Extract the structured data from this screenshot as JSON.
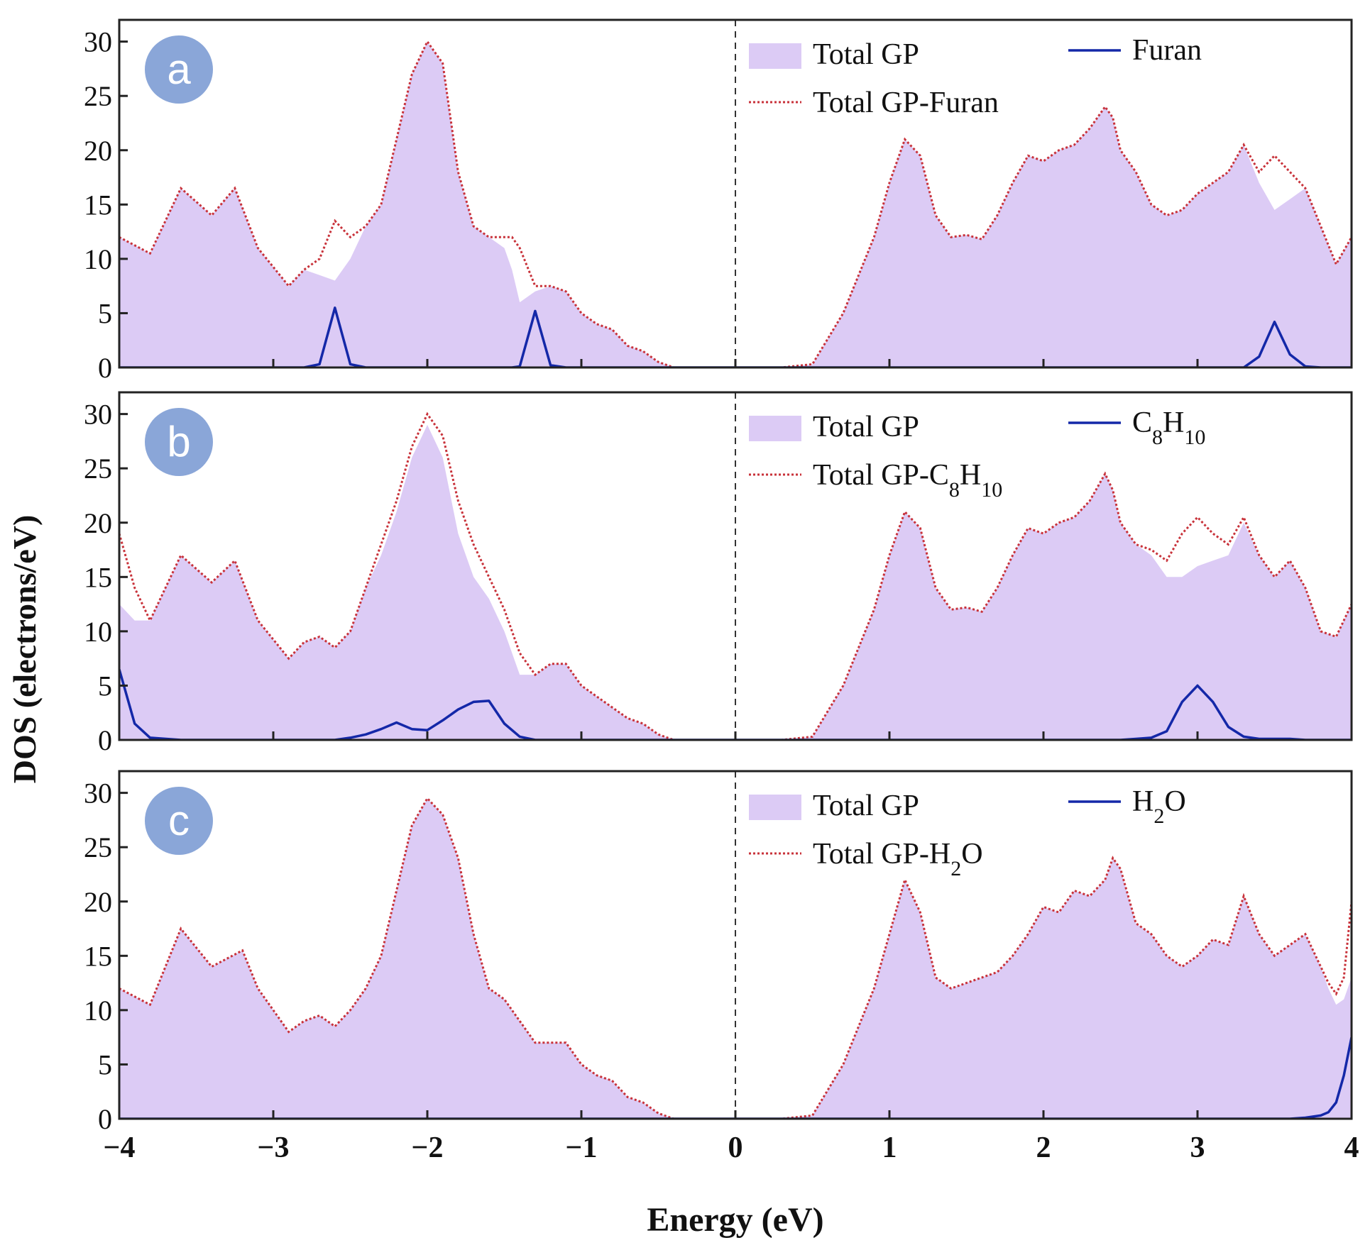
{
  "figure": {
    "xlabel": "Energy (eV)",
    "ylabel": "DOS (electrons/eV)",
    "xlim": [
      -4,
      4
    ],
    "ylim": [
      0,
      32
    ],
    "xticks": [
      "−4",
      "−3",
      "−2",
      "−1",
      "0",
      "1",
      "2",
      "3",
      "4"
    ],
    "xtick_values": [
      -4,
      -3,
      -2,
      -1,
      0,
      1,
      2,
      3,
      4
    ],
    "yticks": [
      "0",
      "5",
      "10",
      "15",
      "20",
      "25",
      "30"
    ],
    "ytick_values": [
      0,
      5,
      10,
      15,
      20,
      25,
      30
    ],
    "fermi_level": 0,
    "colors": {
      "fill": "#dccbf5",
      "dotted": "#c8323a",
      "line": "#1428a8",
      "badge": "#8aa6d8",
      "axis": "#222222"
    }
  },
  "chart_data": [
    {
      "type": "area",
      "panel_label": "a",
      "legend": {
        "fill": "Total GP",
        "line": "Furan",
        "line_sub": [],
        "dotted": "Total GP-Furan",
        "dotted_sub": []
      },
      "x": [
        -4,
        -3.8,
        -3.6,
        -3.4,
        -3.25,
        -3.1,
        -2.9,
        -2.8,
        -2.7,
        -2.6,
        -2.5,
        -2.4,
        -2.3,
        -2.2,
        -2.1,
        -2.0,
        -1.9,
        -1.8,
        -1.7,
        -1.6,
        -1.5,
        -1.45,
        -1.4,
        -1.3,
        -1.2,
        -1.1,
        -1.0,
        -0.9,
        -0.8,
        -0.7,
        -0.6,
        -0.5,
        -0.4,
        -0.3,
        0,
        0.3,
        0.5,
        0.7,
        0.9,
        1.0,
        1.1,
        1.2,
        1.3,
        1.4,
        1.5,
        1.6,
        1.7,
        1.8,
        1.9,
        2.0,
        2.1,
        2.2,
        2.3,
        2.4,
        2.45,
        2.5,
        2.6,
        2.7,
        2.8,
        2.9,
        3.0,
        3.1,
        3.2,
        3.3,
        3.4,
        3.5,
        3.6,
        3.7,
        3.8,
        3.9,
        4.0
      ],
      "series": [
        {
          "name": "Total GP",
          "style": "fill",
          "values": [
            12,
            10.5,
            16.5,
            14,
            16.5,
            11,
            7.5,
            9,
            8.5,
            8,
            10,
            13,
            15,
            21,
            27,
            30,
            28,
            18,
            13,
            12,
            11,
            9,
            6,
            7,
            7.5,
            7,
            5,
            4,
            3.5,
            2,
            1.5,
            0.5,
            0,
            0,
            0,
            0,
            0.3,
            5,
            12,
            17,
            21,
            19.5,
            14,
            12,
            12.2,
            11.8,
            14,
            17,
            19.5,
            19,
            20,
            20.5,
            22,
            24,
            23,
            20,
            18,
            15,
            14,
            14.5,
            16,
            17,
            18,
            20.5,
            17,
            14.5,
            15.5,
            16.5,
            13,
            9.5,
            12
          ]
        },
        {
          "name": "Total GP-Furan",
          "style": "dotted",
          "values": [
            12,
            10.5,
            16.5,
            14,
            16.5,
            11,
            7.5,
            9,
            10,
            13.5,
            12,
            13,
            15,
            21,
            27,
            30,
            28,
            18,
            13,
            12,
            12,
            12,
            11,
            7.5,
            7.5,
            7,
            5,
            4,
            3.5,
            2,
            1.5,
            0.5,
            0,
            0,
            0,
            0,
            0.3,
            5,
            12,
            17,
            21,
            19.5,
            14,
            12,
            12.2,
            11.8,
            14,
            17,
            19.5,
            19,
            20,
            20.5,
            22,
            24,
            23,
            20,
            18,
            15,
            14,
            14.5,
            16,
            17,
            18,
            20.5,
            18,
            19.5,
            18,
            16.5,
            13,
            9.5,
            12
          ]
        },
        {
          "name": "Furan",
          "style": "line",
          "values": [
            0,
            0,
            0,
            0,
            0,
            0,
            0,
            0,
            0.3,
            5.5,
            0.3,
            0,
            0,
            0,
            0,
            0,
            0,
            0,
            0,
            0,
            0,
            0,
            0.1,
            5.2,
            0.2,
            0,
            0,
            0,
            0,
            0,
            0,
            0,
            0,
            0,
            0,
            0,
            0,
            0,
            0,
            0,
            0,
            0,
            0,
            0,
            0,
            0,
            0,
            0,
            0,
            0,
            0,
            0,
            0,
            0,
            0,
            0,
            0,
            0,
            0,
            0,
            0,
            0,
            0,
            0,
            1.0,
            4.2,
            1.2,
            0.1,
            0,
            0,
            0
          ]
        }
      ]
    },
    {
      "type": "area",
      "panel_label": "b",
      "legend": {
        "fill": "Total GP",
        "line": "C",
        "line_sub": [
          [
            "8",
            "H"
          ],
          [
            "10",
            ""
          ]
        ],
        "dotted": "Total GP-C",
        "dotted_sub": [
          [
            "8",
            "H"
          ],
          [
            "10",
            ""
          ]
        ]
      },
      "x": [
        -4,
        -3.9,
        -3.8,
        -3.6,
        -3.4,
        -3.25,
        -3.1,
        -2.9,
        -2.8,
        -2.7,
        -2.6,
        -2.5,
        -2.4,
        -2.3,
        -2.2,
        -2.1,
        -2.0,
        -1.9,
        -1.8,
        -1.7,
        -1.6,
        -1.5,
        -1.4,
        -1.3,
        -1.2,
        -1.1,
        -1.0,
        -0.9,
        -0.8,
        -0.7,
        -0.6,
        -0.5,
        -0.4,
        -0.3,
        0,
        0.3,
        0.5,
        0.7,
        0.9,
        1.0,
        1.1,
        1.2,
        1.3,
        1.4,
        1.5,
        1.6,
        1.7,
        1.8,
        1.9,
        2.0,
        2.1,
        2.2,
        2.3,
        2.4,
        2.45,
        2.5,
        2.6,
        2.7,
        2.8,
        2.9,
        3.0,
        3.1,
        3.2,
        3.3,
        3.4,
        3.5,
        3.6,
        3.7,
        3.8,
        3.9,
        4.0
      ],
      "series": [
        {
          "name": "Total GP",
          "style": "fill",
          "values": [
            12.5,
            11,
            11,
            17,
            14.5,
            16.5,
            11,
            7.5,
            9,
            9.5,
            8.5,
            10,
            14,
            17,
            21,
            26,
            29,
            26,
            19,
            15,
            13,
            10,
            6,
            6,
            7,
            7,
            5,
            4,
            3,
            2,
            1.5,
            0.5,
            0,
            0,
            0,
            0,
            0.3,
            5,
            12,
            17,
            21,
            19.5,
            14,
            12,
            12.2,
            11.8,
            14,
            17,
            19.5,
            19,
            20,
            20.5,
            22,
            24.5,
            23,
            20,
            18,
            17,
            15,
            15,
            16,
            16.5,
            17,
            20,
            17,
            15,
            16.5,
            14,
            10,
            9.5,
            12.5
          ]
        },
        {
          "name": "Total GP-C8H10",
          "style": "dotted",
          "values": [
            19,
            14,
            11,
            17,
            14.5,
            16.5,
            11,
            7.5,
            9,
            9.5,
            8.5,
            10,
            14,
            18,
            22,
            27,
            30,
            28,
            22,
            18,
            15,
            12,
            8,
            6,
            7,
            7,
            5,
            4,
            3,
            2,
            1.5,
            0.5,
            0,
            0,
            0,
            0,
            0.3,
            5,
            12,
            17,
            21,
            19.5,
            14,
            12,
            12.2,
            11.8,
            14,
            17,
            19.5,
            19,
            20,
            20.5,
            22,
            24.5,
            23,
            20,
            18,
            17.5,
            16.5,
            19,
            20.5,
            19,
            18,
            20.5,
            17,
            15,
            16.5,
            14,
            10,
            9.5,
            12.5
          ]
        },
        {
          "name": "C8H10",
          "style": "line",
          "values": [
            6.5,
            1.5,
            0.2,
            0,
            0,
            0,
            0,
            0,
            0,
            0,
            0,
            0.2,
            0.5,
            1.0,
            1.6,
            1.0,
            0.9,
            1.8,
            2.8,
            3.5,
            3.6,
            1.5,
            0.3,
            0,
            0,
            0,
            0,
            0,
            0,
            0,
            0,
            0,
            0,
            0,
            0,
            0,
            0,
            0,
            0,
            0,
            0,
            0,
            0,
            0,
            0,
            0,
            0,
            0,
            0,
            0,
            0,
            0,
            0,
            0,
            0,
            0,
            0.1,
            0.2,
            0.8,
            3.5,
            5,
            3.5,
            1.2,
            0.3,
            0.1,
            0.1,
            0.1,
            0,
            0,
            0,
            0
          ]
        }
      ]
    },
    {
      "type": "area",
      "panel_label": "c",
      "legend": {
        "fill": "Total GP",
        "line": "H",
        "line_sub": [
          [
            "2",
            "O"
          ]
        ],
        "dotted": "Total GP-H",
        "dotted_sub": [
          [
            "2",
            "O"
          ]
        ]
      },
      "x": [
        -4,
        -3.8,
        -3.6,
        -3.4,
        -3.2,
        -3.1,
        -2.9,
        -2.8,
        -2.7,
        -2.6,
        -2.5,
        -2.4,
        -2.3,
        -2.2,
        -2.1,
        -2.0,
        -1.9,
        -1.8,
        -1.7,
        -1.6,
        -1.5,
        -1.45,
        -1.4,
        -1.3,
        -1.2,
        -1.1,
        -1.0,
        -0.9,
        -0.8,
        -0.7,
        -0.6,
        -0.5,
        -0.4,
        -0.3,
        0,
        0.3,
        0.5,
        0.7,
        0.9,
        1.0,
        1.1,
        1.2,
        1.3,
        1.4,
        1.5,
        1.6,
        1.7,
        1.8,
        1.9,
        2.0,
        2.1,
        2.2,
        2.3,
        2.4,
        2.45,
        2.5,
        2.6,
        2.7,
        2.8,
        2.9,
        3.0,
        3.1,
        3.2,
        3.3,
        3.4,
        3.5,
        3.6,
        3.7,
        3.8,
        3.85,
        3.9,
        3.95,
        4.0
      ],
      "series": [
        {
          "name": "Total GP",
          "style": "fill",
          "values": [
            12,
            10.5,
            17.5,
            14,
            15.5,
            12,
            8,
            9,
            9.5,
            8.5,
            10,
            12,
            15,
            21,
            27,
            29.5,
            28,
            24,
            17,
            12,
            11,
            10,
            9,
            7,
            7,
            7,
            5,
            4,
            3.5,
            2,
            1.5,
            0.5,
            0,
            0,
            0,
            0,
            0.3,
            5,
            12,
            17,
            22,
            19,
            13,
            12,
            12.5,
            13,
            13.5,
            15,
            17,
            19.5,
            19,
            21,
            20.5,
            22,
            24,
            23,
            18,
            17,
            15,
            14,
            15,
            16.5,
            16,
            20.5,
            17,
            15,
            16,
            17,
            14,
            12,
            10.5,
            11,
            13
          ]
        },
        {
          "name": "Total GP-H2O",
          "style": "dotted",
          "values": [
            12,
            10.5,
            17.5,
            14,
            15.5,
            12,
            8,
            9,
            9.5,
            8.5,
            10,
            12,
            15,
            21,
            27,
            29.5,
            28,
            24,
            17,
            12,
            11,
            10,
            9,
            7,
            7,
            7,
            5,
            4,
            3.5,
            2,
            1.5,
            0.5,
            0,
            0,
            0,
            0,
            0.3,
            5,
            12,
            17,
            22,
            19,
            13,
            12,
            12.5,
            13,
            13.5,
            15,
            17,
            19.5,
            19,
            21,
            20.5,
            22,
            24,
            23,
            18,
            17,
            15,
            14,
            15,
            16.5,
            16,
            20.5,
            17,
            15,
            16,
            17,
            14,
            12.5,
            11.5,
            13,
            20
          ]
        },
        {
          "name": "H2O",
          "style": "line",
          "values": [
            0,
            0,
            0,
            0,
            0,
            0,
            0,
            0,
            0,
            0,
            0,
            0,
            0,
            0,
            0,
            0,
            0,
            0,
            0,
            0,
            0,
            0,
            0,
            0,
            0,
            0,
            0,
            0,
            0,
            0,
            0,
            0,
            0,
            0,
            0,
            0,
            0,
            0,
            0,
            0,
            0,
            0,
            0,
            0,
            0,
            0,
            0,
            0,
            0,
            0,
            0,
            0,
            0,
            0,
            0,
            0,
            0,
            0,
            0,
            0,
            0,
            0,
            0,
            0,
            0,
            0,
            0,
            0.1,
            0.3,
            0.6,
            1.5,
            4,
            7.5
          ]
        }
      ]
    }
  ]
}
